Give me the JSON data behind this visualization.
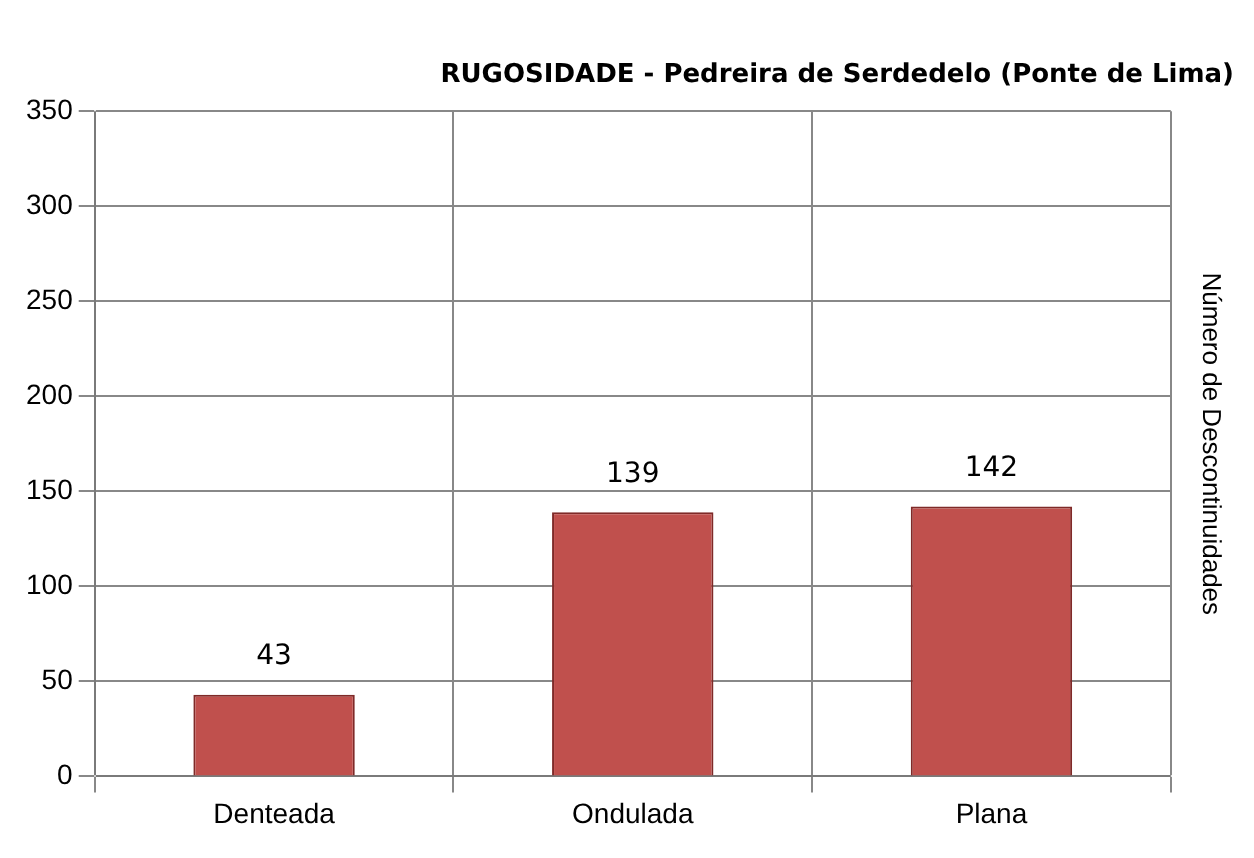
{
  "chart_data": {
    "type": "bar",
    "title": "RUGOSIDADE - Pedreira de Serdedelo (Ponte de Lima)",
    "ylabel": "Número de Descontinuidades",
    "categories": [
      "Denteada",
      "Ondulada",
      "Plana"
    ],
    "values": [
      43,
      139,
      142
    ],
    "color": "#c0504d",
    "ylim": [
      0,
      350
    ],
    "yticks": [
      0,
      50,
      100,
      150,
      200,
      250,
      300,
      350
    ],
    "grid": true,
    "data_labels": true
  }
}
